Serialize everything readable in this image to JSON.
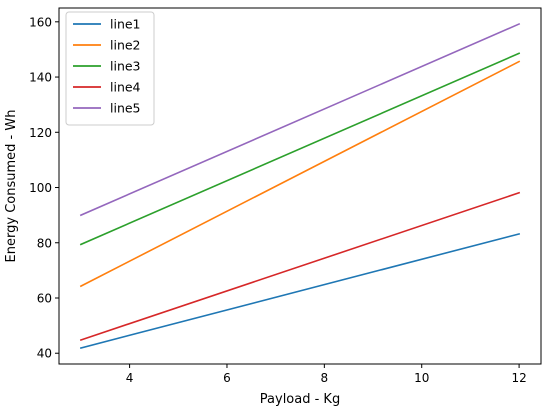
{
  "chart_data": {
    "type": "line",
    "title": "",
    "xlabel": "Payload - Kg",
    "ylabel": "Energy Consumed - Wh",
    "xlim": [
      2.55,
      12.45
    ],
    "ylim": [
      36.1,
      165.0
    ],
    "xticks": [
      4,
      6,
      8,
      10,
      12
    ],
    "yticks": [
      40,
      60,
      80,
      100,
      120,
      140,
      160
    ],
    "grid": false,
    "legend_position": "top-left",
    "x": [
      3,
      12
    ],
    "series": [
      {
        "name": "line1",
        "color": "#1f77b4",
        "values": [
          41.9,
          83.2
        ]
      },
      {
        "name": "line2",
        "color": "#ff7f0e",
        "values": [
          64.3,
          145.6
        ]
      },
      {
        "name": "line3",
        "color": "#2ca02c",
        "values": [
          79.4,
          148.6
        ]
      },
      {
        "name": "line4",
        "color": "#d62728",
        "values": [
          44.8,
          98.1
        ]
      },
      {
        "name": "line5",
        "color": "#9467bd",
        "values": [
          90.0,
          159.2
        ]
      }
    ]
  }
}
